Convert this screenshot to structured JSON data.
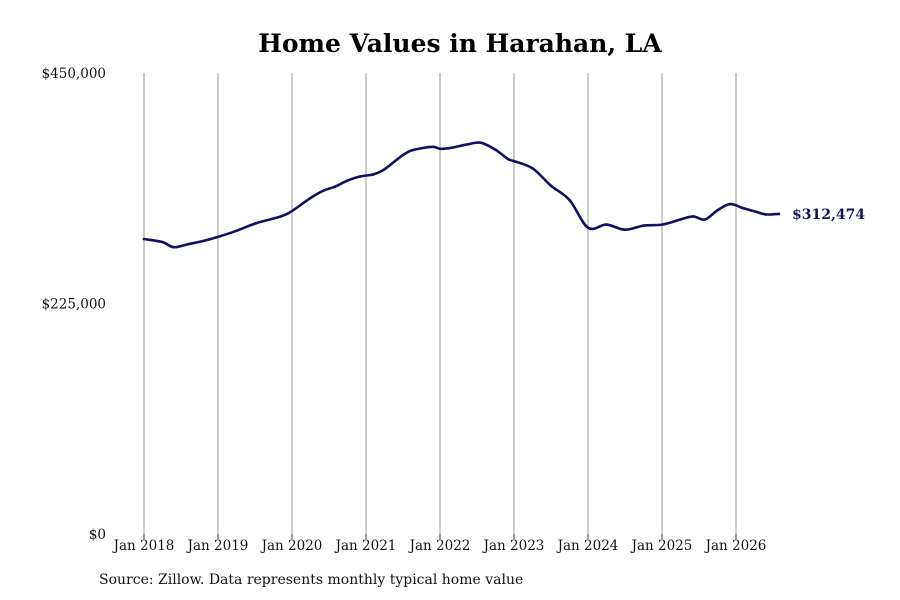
{
  "chart_data": {
    "type": "line",
    "title": "Home Values in Harahan, LA",
    "xlabel": "",
    "ylabel": "",
    "ylim": [
      0,
      450000
    ],
    "y_ticks": [
      {
        "value": 0,
        "label": "$0"
      },
      {
        "value": 225000,
        "label": "$225,000"
      },
      {
        "value": 450000,
        "label": "$450,000"
      }
    ],
    "x_ticks": [
      {
        "value": 2018.0,
        "label": "Jan 2018"
      },
      {
        "value": 2019.0,
        "label": "Jan 2019"
      },
      {
        "value": 2020.0,
        "label": "Jan 2020"
      },
      {
        "value": 2021.0,
        "label": "Jan 2021"
      },
      {
        "value": 2022.0,
        "label": "Jan 2022"
      },
      {
        "value": 2023.0,
        "label": "Jan 2023"
      },
      {
        "value": 2024.0,
        "label": "Jan 2024"
      },
      {
        "value": 2025.0,
        "label": "Jan 2025"
      },
      {
        "value": 2026.0,
        "label": "Jan 2026"
      }
    ],
    "grid": {
      "x": true,
      "y": false
    },
    "series": [
      {
        "name": "",
        "color": "#11115e",
        "end_label": "$312,474",
        "x": [
          2018.0,
          2018.25,
          2018.4,
          2018.6,
          2018.8,
          2019.0,
          2019.25,
          2019.5,
          2019.75,
          2019.95,
          2020.25,
          2020.42,
          2020.58,
          2020.75,
          2020.92,
          2021.1,
          2021.25,
          2021.5,
          2021.65,
          2021.9,
          2022.0,
          2022.15,
          2022.35,
          2022.55,
          2022.75,
          2022.92,
          2023.0,
          2023.25,
          2023.5,
          2023.75,
          2024.0,
          2024.25,
          2024.5,
          2024.75,
          2025.0,
          2025.25,
          2025.42,
          2025.58,
          2025.75,
          2025.92,
          2026.1,
          2026.25,
          2026.4,
          2026.58
        ],
        "y": [
          288000,
          285000,
          280000,
          283000,
          286000,
          290000,
          296000,
          303000,
          308000,
          313000,
          328000,
          335000,
          339000,
          345000,
          349000,
          351000,
          356000,
          370000,
          375000,
          378000,
          376000,
          377000,
          380000,
          382000,
          375000,
          366000,
          364000,
          357000,
          340000,
          326000,
          299000,
          302000,
          297000,
          301000,
          302000,
          307000,
          310000,
          307000,
          316000,
          322000,
          318000,
          315000,
          312000,
          312474
        ]
      }
    ]
  },
  "footer": {
    "source": "Source: Zillow. Data represents monthly typical home value"
  }
}
